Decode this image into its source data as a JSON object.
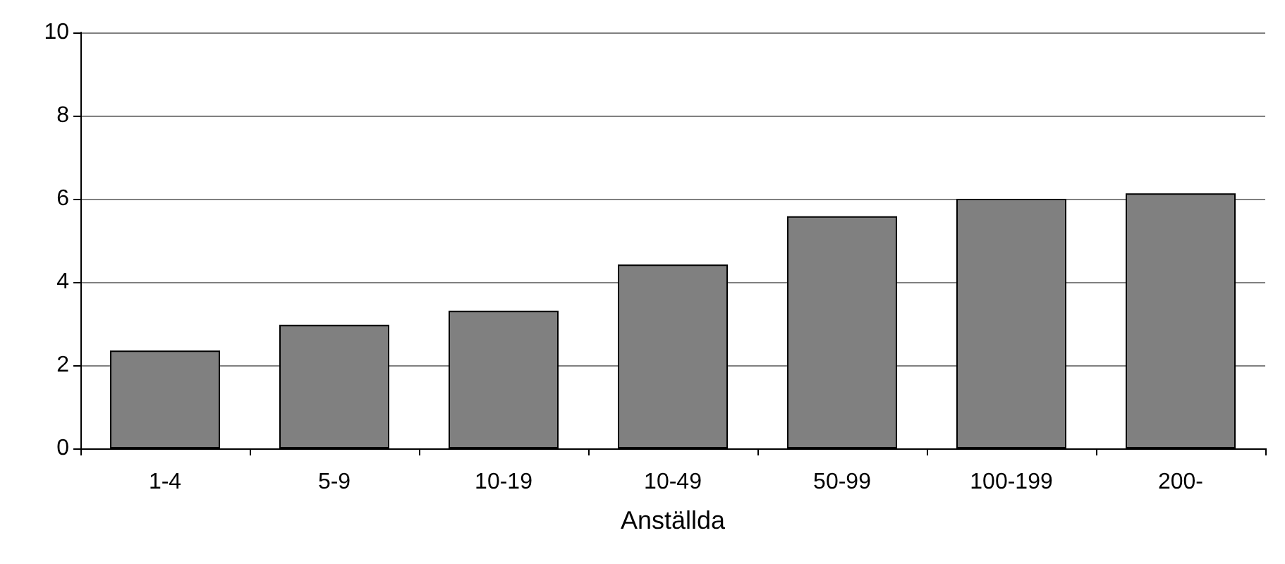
{
  "chart_data": {
    "type": "bar",
    "xlabel": "Anställda",
    "categories": [
      "1-4",
      "5-9",
      "10-19",
      "10-49",
      "50-99",
      "100-199",
      "200-"
    ],
    "values": [
      2.35,
      2.97,
      3.31,
      4.42,
      5.58,
      6.0,
      6.13
    ],
    "color": "#808080",
    "ylim": [
      0,
      10
    ],
    "yticks": [
      0,
      2,
      4,
      6,
      8,
      10
    ],
    "grid": "y"
  }
}
